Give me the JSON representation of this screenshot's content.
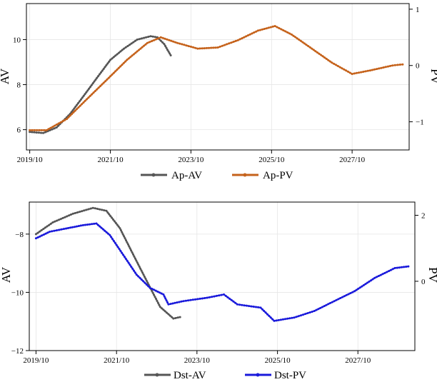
{
  "chart_data": [
    {
      "type": "line",
      "title": "",
      "xlabel": "",
      "ylabel_left": "AV",
      "ylabel_right": "PV",
      "x_ticks": [
        "2019/10",
        "2021/10",
        "2023/10",
        "2025/10",
        "2027/10"
      ],
      "xlim": [
        "2019-09-01",
        "2029-03-01"
      ],
      "ylim_left": [
        5.1,
        11.6
      ],
      "yticks_left": [
        6,
        8,
        10
      ],
      "ylim_right": [
        -1.5,
        1.1
      ],
      "yticks_right": [
        -1,
        0,
        1
      ],
      "grid": true,
      "legend": "bottom-center",
      "series": [
        {
          "name": "Ap-AV",
          "axis": "left",
          "color": "#555555",
          "x": [
            "2019-10-01",
            "2020-02-01",
            "2020-06-01",
            "2020-10-01",
            "2021-02-01",
            "2021-06-01",
            "2021-10-01",
            "2022-02-01",
            "2022-06-01",
            "2022-10-01",
            "2022-12-01",
            "2023-02-01",
            "2023-04-01"
          ],
          "y": [
            5.9,
            5.85,
            6.1,
            6.7,
            7.5,
            8.3,
            9.1,
            9.6,
            10.0,
            10.15,
            10.1,
            9.8,
            9.3
          ]
        },
        {
          "name": "Ap-PV",
          "axis": "right",
          "color": "#c5621b",
          "x": [
            "2019-10-01",
            "2020-03-01",
            "2020-09-01",
            "2021-03-01",
            "2021-09-01",
            "2022-03-01",
            "2022-09-01",
            "2023-01-01",
            "2023-06-01",
            "2023-12-01",
            "2024-06-01",
            "2024-12-01",
            "2025-06-01",
            "2025-11-01",
            "2026-04-01",
            "2026-10-01",
            "2027-04-01",
            "2027-10-01",
            "2028-04-01",
            "2028-10-01",
            "2029-01-01"
          ],
          "y": [
            -1.15,
            -1.15,
            -0.95,
            -0.6,
            -0.25,
            0.1,
            0.4,
            0.5,
            0.4,
            0.3,
            0.32,
            0.45,
            0.62,
            0.7,
            0.55,
            0.3,
            0.05,
            -0.15,
            -0.08,
            0.0,
            0.02
          ]
        }
      ]
    },
    {
      "type": "line",
      "title": "",
      "xlabel": "",
      "ylabel_left": "AV",
      "ylabel_right": "PV",
      "x_ticks": [
        "2019/10",
        "2021/10",
        "2023/10",
        "2025/10",
        "2027/10"
      ],
      "xlim": [
        "2019-08-01",
        "2029-03-01"
      ],
      "ylim_left": [
        -12,
        -6.9
      ],
      "yticks_left": [
        -8,
        -10,
        -12
      ],
      "ylim_right": [
        -2.1,
        2.4
      ],
      "yticks_right": [
        2,
        0
      ],
      "grid": true,
      "legend": "bottom-center",
      "series": [
        {
          "name": "Dst-AV",
          "axis": "left",
          "color": "#555555",
          "x": [
            "2019-10-01",
            "2020-03-01",
            "2020-09-01",
            "2021-03-01",
            "2021-07-01",
            "2021-11-01",
            "2022-03-01",
            "2022-07-01",
            "2022-11-01",
            "2023-03-01",
            "2023-05-01"
          ],
          "y": [
            -8.0,
            -7.6,
            -7.3,
            -7.1,
            -7.2,
            -7.8,
            -8.7,
            -9.6,
            -10.5,
            -10.9,
            -10.85
          ]
        },
        {
          "name": "Dst-PV",
          "axis": "right",
          "color": "#1a1adb",
          "x": [
            "2019-10-01",
            "2020-02-01",
            "2020-07-01",
            "2020-12-01",
            "2021-04-01",
            "2021-08-01",
            "2021-12-01",
            "2022-04-01",
            "2022-08-01",
            "2022-12-01",
            "2023-01-15",
            "2023-06-01",
            "2024-01-01",
            "2024-06-01",
            "2024-10-01",
            "2025-05-01",
            "2025-09-01",
            "2026-03-01",
            "2026-09-01",
            "2027-03-01",
            "2027-09-01",
            "2028-03-01",
            "2028-09-01",
            "2029-01-01"
          ],
          "y": [
            1.3,
            1.5,
            1.6,
            1.7,
            1.75,
            1.4,
            0.8,
            0.2,
            -0.2,
            -0.4,
            -0.7,
            -0.6,
            -0.5,
            -0.4,
            -0.7,
            -0.8,
            -1.2,
            -1.1,
            -0.9,
            -0.6,
            -0.3,
            0.1,
            0.4,
            0.45
          ]
        }
      ]
    }
  ]
}
